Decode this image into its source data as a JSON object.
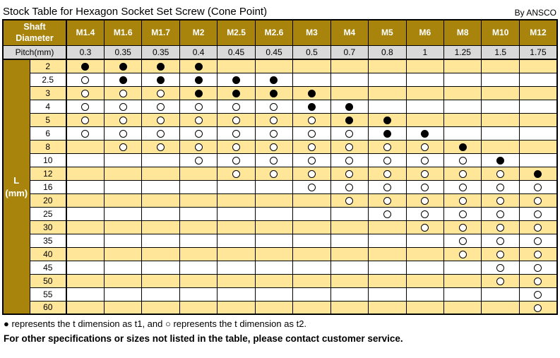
{
  "title": "Stock Table for Hexagon Socket Set Screw (Cone Point)",
  "byline": "By ANSCO",
  "table": {
    "corner_header_lines": [
      "Shaft",
      "Diameter"
    ],
    "columns": [
      "M1.4",
      "M1.6",
      "M1.7",
      "M2",
      "M2.5",
      "M2.6",
      "M3",
      "M4",
      "M5",
      "M6",
      "M8",
      "M10",
      "M12"
    ],
    "pitch_label": "Pitch(mm)",
    "pitches": [
      "0.3",
      "0.35",
      "0.35",
      "0.4",
      "0.45",
      "0.45",
      "0.5",
      "0.7",
      "0.8",
      "1",
      "1.25",
      "1.5",
      "1.75"
    ],
    "row_axis_label_lines": [
      "L",
      "(mm)"
    ],
    "rows": [
      {
        "length": "2",
        "cells": [
          "t1",
          "t1",
          "t1",
          "t1",
          "",
          "",
          "",
          "",
          "",
          "",
          "",
          "",
          ""
        ]
      },
      {
        "length": "2.5",
        "cells": [
          "t2",
          "t1",
          "t1",
          "t1",
          "t1",
          "t1",
          "",
          "",
          "",
          "",
          "",
          "",
          ""
        ]
      },
      {
        "length": "3",
        "cells": [
          "t2",
          "t2",
          "t2",
          "t1",
          "t1",
          "t1",
          "t1",
          "",
          "",
          "",
          "",
          "",
          ""
        ]
      },
      {
        "length": "4",
        "cells": [
          "t2",
          "t2",
          "t2",
          "t2",
          "t2",
          "t2",
          "t1",
          "t1",
          "",
          "",
          "",
          "",
          ""
        ]
      },
      {
        "length": "5",
        "cells": [
          "t2",
          "t2",
          "t2",
          "t2",
          "t2",
          "t2",
          "t2",
          "t1",
          "t1",
          "",
          "",
          "",
          ""
        ]
      },
      {
        "length": "6",
        "cells": [
          "t2",
          "t2",
          "t2",
          "t2",
          "t2",
          "t2",
          "t2",
          "t2",
          "t1",
          "t1",
          "",
          "",
          ""
        ]
      },
      {
        "length": "8",
        "cells": [
          "",
          "t2",
          "t2",
          "t2",
          "t2",
          "t2",
          "t2",
          "t2",
          "t2",
          "t2",
          "t1",
          "",
          ""
        ]
      },
      {
        "length": "10",
        "cells": [
          "",
          "",
          "",
          "t2",
          "t2",
          "t2",
          "t2",
          "t2",
          "t2",
          "t2",
          "t2",
          "t1",
          ""
        ]
      },
      {
        "length": "12",
        "cells": [
          "",
          "",
          "",
          "",
          "t2",
          "t2",
          "t2",
          "t2",
          "t2",
          "t2",
          "t2",
          "t2",
          "t1"
        ]
      },
      {
        "length": "16",
        "cells": [
          "",
          "",
          "",
          "",
          "",
          "",
          "t2",
          "t2",
          "t2",
          "t2",
          "t2",
          "t2",
          "t2"
        ]
      },
      {
        "length": "20",
        "cells": [
          "",
          "",
          "",
          "",
          "",
          "",
          "",
          "t2",
          "t2",
          "t2",
          "t2",
          "t2",
          "t2"
        ]
      },
      {
        "length": "25",
        "cells": [
          "",
          "",
          "",
          "",
          "",
          "",
          "",
          "",
          "t2",
          "t2",
          "t2",
          "t2",
          "t2"
        ]
      },
      {
        "length": "30",
        "cells": [
          "",
          "",
          "",
          "",
          "",
          "",
          "",
          "",
          "",
          "t2",
          "t2",
          "t2",
          "t2"
        ]
      },
      {
        "length": "35",
        "cells": [
          "",
          "",
          "",
          "",
          "",
          "",
          "",
          "",
          "",
          "",
          "t2",
          "t2",
          "t2"
        ]
      },
      {
        "length": "40",
        "cells": [
          "",
          "",
          "",
          "",
          "",
          "",
          "",
          "",
          "",
          "",
          "t2",
          "t2",
          "t2"
        ]
      },
      {
        "length": "45",
        "cells": [
          "",
          "",
          "",
          "",
          "",
          "",
          "",
          "",
          "",
          "",
          "",
          "t2",
          "t2"
        ]
      },
      {
        "length": "50",
        "cells": [
          "",
          "",
          "",
          "",
          "",
          "",
          "",
          "",
          "",
          "",
          "",
          "t2",
          "t2"
        ]
      },
      {
        "length": "55",
        "cells": [
          "",
          "",
          "",
          "",
          "",
          "",
          "",
          "",
          "",
          "",
          "",
          "",
          "t2"
        ]
      },
      {
        "length": "60",
        "cells": [
          "",
          "",
          "",
          "",
          "",
          "",
          "",
          "",
          "",
          "",
          "",
          "",
          "t2"
        ]
      }
    ]
  },
  "symbols": {
    "filled": "●",
    "open": "○"
  },
  "legend": "● represents the t dimension as t1, and ○ represents the t dimension as t2.",
  "note": "For other specifications or sizes not listed in the table, please contact customer service.",
  "colors": {
    "header_bg": "#A8840D",
    "band_yellow": "#FFE699",
    "pitch_bg": "#D9D9D9",
    "border": "#000000",
    "header_text": "#FFFFFF"
  }
}
